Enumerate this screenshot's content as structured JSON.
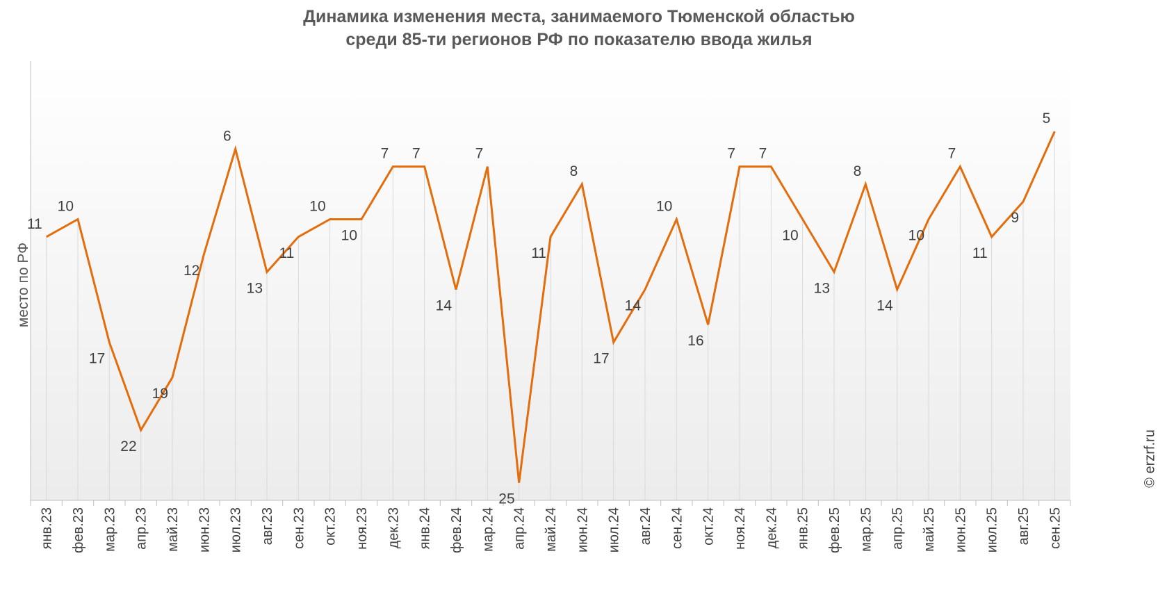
{
  "chart_data": {
    "type": "line",
    "title_lines": [
      "Динамика изменения места, занимаемого Тюменской областью",
      "среди 85-ти регионов РФ по показателю ввода жилья"
    ],
    "ylabel": "место по РФ",
    "xlabel": "",
    "y_axis_inverted": true,
    "ylim": [
      1,
      26
    ],
    "grid": "vertical",
    "categories": [
      "янв.23",
      "фев.23",
      "мар.23",
      "апр.23",
      "май.23",
      "июн.23",
      "июл.23",
      "авг.23",
      "сен.23",
      "окт.23",
      "ноя.23",
      "дек.23",
      "янв.24",
      "фев.24",
      "мар.24",
      "апр.24",
      "май.24",
      "июн.24",
      "июл.24",
      "авг.24",
      "сен.24",
      "окт.24",
      "ноя.24",
      "дек.24",
      "янв.25",
      "фев.25",
      "мар.25",
      "апр.25",
      "май.25",
      "июн.25",
      "июл.25",
      "авг.25",
      "сен.25"
    ],
    "series": [
      {
        "color": "#E46C0A",
        "values": [
          11,
          10,
          17,
          22,
          19,
          12,
          6,
          13,
          11,
          10,
          10,
          7,
          7,
          14,
          7,
          25,
          11,
          8,
          17,
          14,
          10,
          16,
          7,
          7,
          10,
          13,
          8,
          14,
          10,
          7,
          11,
          9,
          5
        ]
      }
    ]
  },
  "credit": "© erzrf.ru"
}
